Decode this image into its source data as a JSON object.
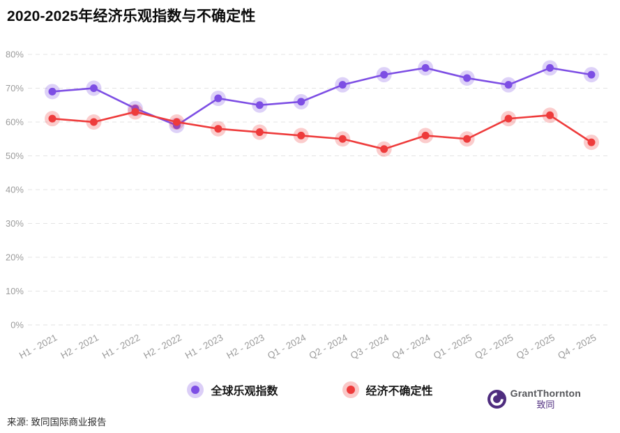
{
  "title": "2020-2025年经济乐观指数与不确定性",
  "source": "来源: 致同国际商业报告",
  "logo": {
    "name": "GrantThornton",
    "sub": "致同",
    "brand_color": "#4F2D7F"
  },
  "legend": [
    {
      "label": "全球乐观指数",
      "color": "#7d4ee4"
    },
    {
      "label": "经济不确定性",
      "color": "#ee3b3b"
    }
  ],
  "chart_data": {
    "type": "line",
    "title": "2020-2025年经济乐观指数与不确定性",
    "categories": [
      "H1 - 2021",
      "H2 - 2021",
      "H1 - 2022",
      "H2 - 2022",
      "H1 - 2023",
      "H2 - 2023",
      "Q1 - 2024",
      "Q2 - 2024",
      "Q3 - 2024",
      "Q4 - 2024",
      "Q1 - 2025",
      "Q2 - 2025",
      "Q3 - 2025",
      "Q4 - 2025"
    ],
    "series": [
      {
        "name": "全球乐观指数",
        "color": "#7d4ee4",
        "values": [
          69,
          70,
          64,
          59,
          67,
          65,
          66,
          71,
          74,
          76,
          73,
          71,
          76,
          74
        ]
      },
      {
        "name": "经济不确定性",
        "color": "#ee3b3b",
        "values": [
          61,
          60,
          63,
          60,
          58,
          57,
          56,
          55,
          52,
          56,
          55,
          61,
          62,
          54
        ]
      }
    ],
    "ylim": [
      0,
      80
    ],
    "ytick_step": 10,
    "ytick_labels": [
      "0%",
      "10%",
      "20%",
      "30%",
      "40%",
      "50%",
      "60%",
      "70%",
      "80%"
    ],
    "ylabel_format": "percent",
    "grid": "horizontal-dashed",
    "legend_position": "bottom",
    "marker_style": "dot-with-halo"
  }
}
